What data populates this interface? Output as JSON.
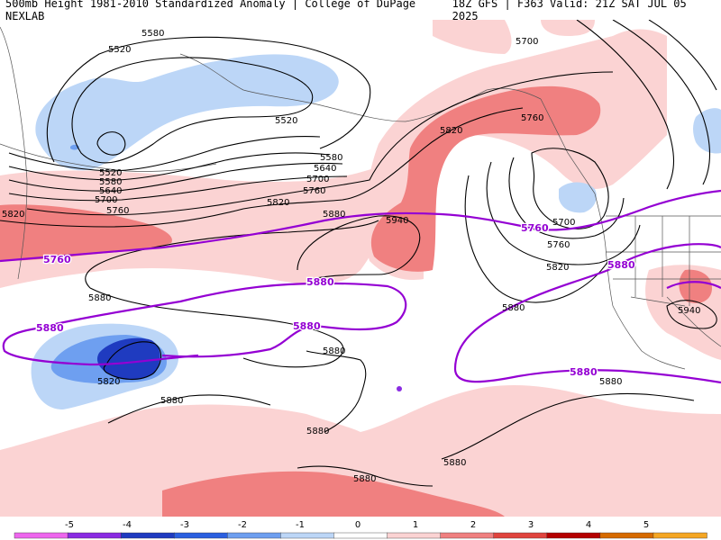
{
  "header": {
    "left_title": "500mb Height 1981-2010 Standardized Anomaly | College of DuPage NEXLAB",
    "right_title": "18Z GFS | F363 Valid: 21Z SAT JUL 05 2025"
  },
  "colorbar": {
    "labels": [
      "-5",
      "-4",
      "-3",
      "-2",
      "-1",
      "0",
      "1",
      "2",
      "3",
      "4",
      "5"
    ],
    "colors": [
      "#ee66ee",
      "#8a2be2",
      "#1f3bc0",
      "#2b5fe0",
      "#6e9ff0",
      "#bcd6f7",
      "#ffffff",
      "#fbd3d3",
      "#f08080",
      "#e0443e",
      "#b40000",
      "#d66a00",
      "#f5a623"
    ]
  },
  "contours": {
    "black_labels": [
      "5580",
      "5520",
      "5520",
      "5580",
      "5640",
      "5700",
      "5520",
      "5580",
      "5640",
      "5700",
      "5760",
      "5820",
      "5760",
      "5820",
      "5880",
      "5880",
      "5940",
      "5700",
      "5760",
      "5820",
      "5880",
      "5700",
      "5760",
      "5820",
      "5880",
      "5940",
      "5880",
      "5820",
      "5880",
      "5880",
      "5880",
      "5880"
    ],
    "purple_labels": [
      "5760",
      "5760",
      "5880",
      "5880",
      "5880",
      "5880",
      "5880"
    ]
  },
  "colors": {
    "anomaly_pos_light": "#fbd3d3",
    "anomaly_pos_mid": "#f08080",
    "anomaly_neg_light": "#bcd6f7",
    "anomaly_neg_mid": "#6e9ff0",
    "anomaly_neg_dark": "#1f3bc0",
    "contour_black": "#000000",
    "contour_purple": "#9400d3"
  }
}
